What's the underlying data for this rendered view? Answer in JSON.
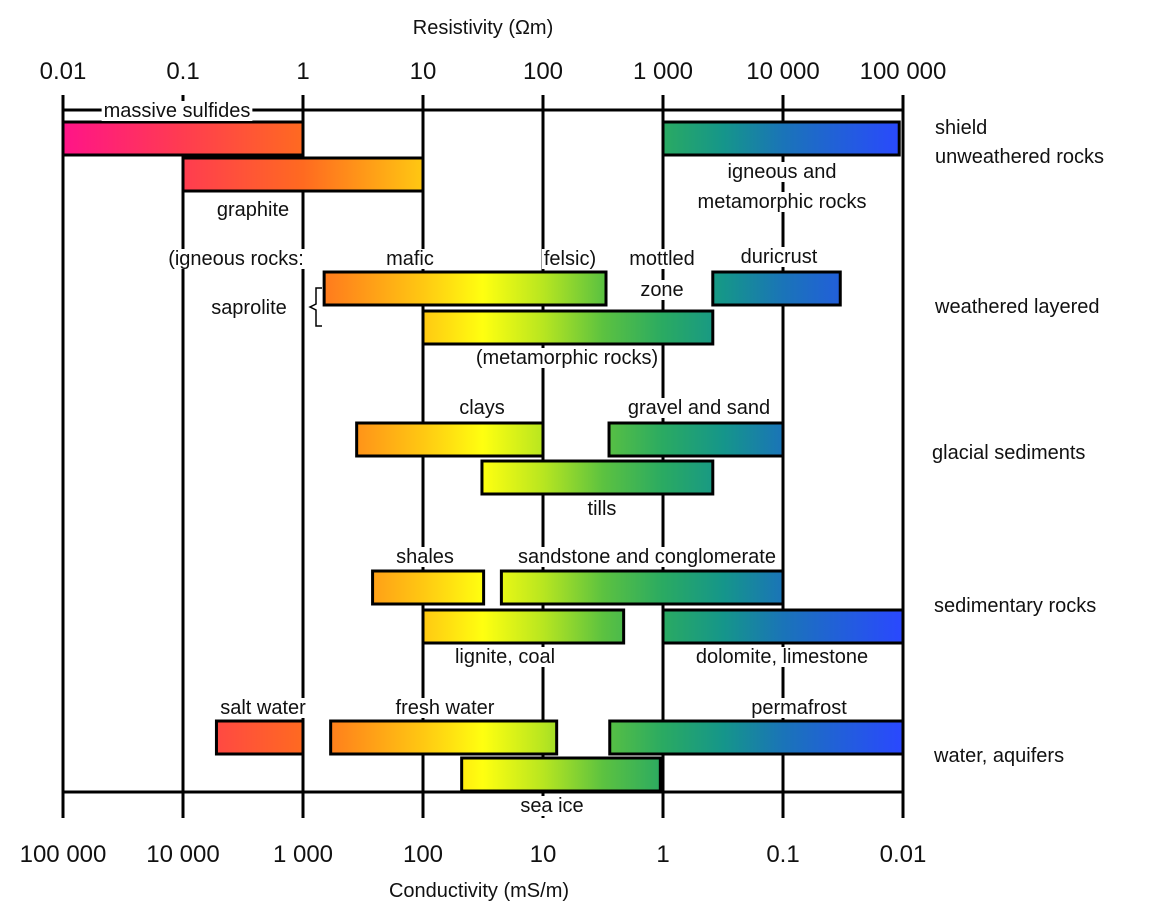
{
  "chart_data": {
    "type": "range-bar",
    "title": "",
    "top_axis": {
      "label": "Resistivity (Ωm)",
      "scale": "log",
      "range": [
        0.01,
        100000
      ],
      "ticks": [
        "0.01",
        "0.1",
        "1",
        "10",
        "100",
        "1 000",
        "10 000",
        "100 000"
      ]
    },
    "bottom_axis": {
      "label": "Conductivity (mS/m)",
      "scale": "log",
      "range": [
        100000,
        0.01
      ],
      "ticks": [
        "100 000",
        "10 000",
        "1 000",
        "100",
        "10",
        "1",
        "0.1",
        "0.01"
      ]
    },
    "groups": [
      {
        "lines": [
          "shield",
          "unweathered rocks"
        ]
      },
      {
        "lines": [
          "weathered layered"
        ]
      },
      {
        "lines": [
          "glacial sediments"
        ]
      },
      {
        "lines": [
          "sedimentary rocks"
        ]
      },
      {
        "lines": [
          "water, aquifers"
        ]
      }
    ],
    "bars": [
      {
        "name": "massive sulfides",
        "resistivity_min": 0.01,
        "resistivity_max": 1
      },
      {
        "name": "graphite",
        "resistivity_min": 0.1,
        "resistivity_max": 10
      },
      {
        "name": "igneous and metamorphic rocks",
        "resistivity_min": 1000,
        "resistivity_max": 93000
      },
      {
        "name": "saprolite (igneous rocks)",
        "resistivity_min": 1.5,
        "resistivity_max": 335
      },
      {
        "name": "saprolite (metamorphic rocks)",
        "resistivity_min": 10,
        "resistivity_max": 2600
      },
      {
        "name": "duricrust",
        "resistivity_min": 2600,
        "resistivity_max": 30000
      },
      {
        "name": "clays",
        "resistivity_min": 2.8,
        "resistivity_max": 100
      },
      {
        "name": "gravel and sand",
        "resistivity_min": 355,
        "resistivity_max": 10000
      },
      {
        "name": "tills",
        "resistivity_min": 31,
        "resistivity_max": 2600
      },
      {
        "name": "shales",
        "resistivity_min": 3.8,
        "resistivity_max": 32
      },
      {
        "name": "sandstone and conglomerate",
        "resistivity_min": 45,
        "resistivity_max": 10000
      },
      {
        "name": "lignite, coal",
        "resistivity_min": 10,
        "resistivity_max": 470
      },
      {
        "name": "dolomite, limestone",
        "resistivity_min": 1000,
        "resistivity_max": 100000
      },
      {
        "name": "salt water",
        "resistivity_min": 0.19,
        "resistivity_max": 1
      },
      {
        "name": "fresh water",
        "resistivity_min": 1.7,
        "resistivity_max": 130
      },
      {
        "name": "permafrost",
        "resistivity_min": 360,
        "resistivity_max": 100000
      },
      {
        "name": "sea ice",
        "resistivity_min": 21,
        "resistivity_max": 950
      }
    ],
    "labels": [
      "massive sulfides",
      "graphite",
      "igneous and",
      "metamorphic rocks",
      "(igneous rocks:",
      "mafic",
      "felsic)",
      "mottled",
      "zone",
      "duricrust",
      "saprolite",
      "(metamorphic rocks)",
      "clays",
      "gravel and sand",
      "tills",
      "shales",
      "sandstone and conglomerate",
      "lignite, coal",
      "dolomite, limestone",
      "salt water",
      "fresh water",
      "permafrost",
      "sea ice"
    ],
    "color_scale": {
      "description_stops": [
        {
          "resistivity": 0.01,
          "color": "#ff1488"
        },
        {
          "resistivity": 0.1,
          "color": "#ff3c50"
        },
        {
          "resistivity": 1,
          "color": "#ff6a20"
        },
        {
          "resistivity": 3.16,
          "color": "#ff9818"
        },
        {
          "resistivity": 10,
          "color": "#ffc812"
        },
        {
          "resistivity": 31.6,
          "color": "#ffff10"
        },
        {
          "resistivity": 100,
          "color": "#b8e620"
        },
        {
          "resistivity": 316,
          "color": "#5cc240"
        },
        {
          "resistivity": 1000,
          "color": "#2aaa62"
        },
        {
          "resistivity": 3160,
          "color": "#15968a"
        },
        {
          "resistivity": 10000,
          "color": "#1a74b8"
        },
        {
          "resistivity": 100000,
          "color": "#2a48ff"
        }
      ]
    },
    "grid": true
  }
}
